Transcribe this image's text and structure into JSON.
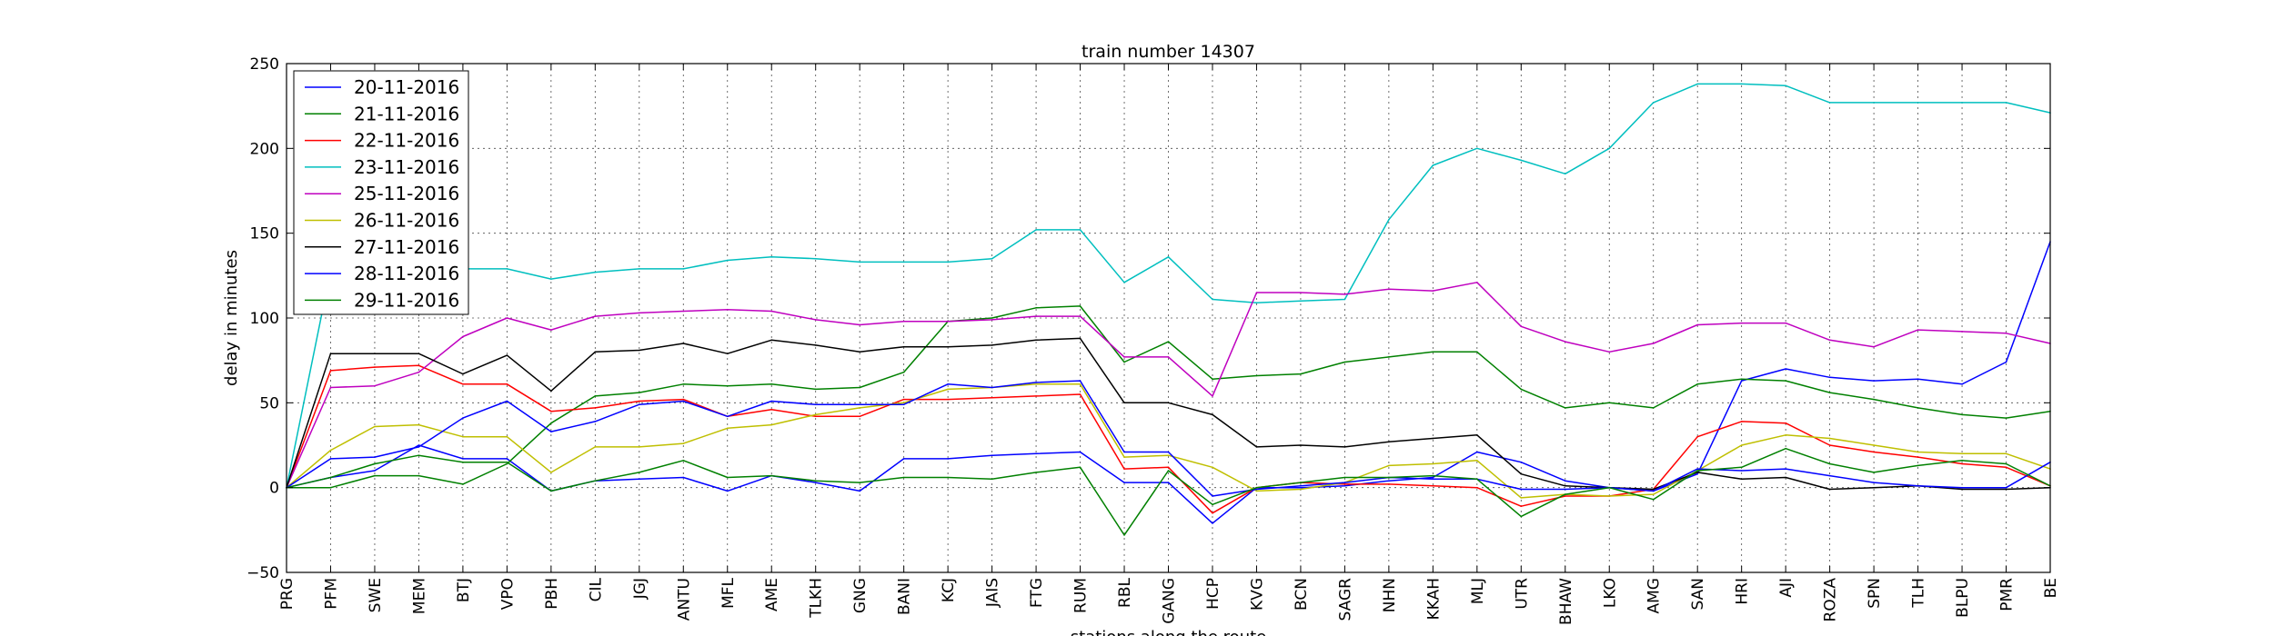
{
  "chart_data": {
    "type": "line",
    "title": "train number 14307",
    "xlabel": "stations along the route",
    "ylabel": "delay in minutes",
    "ylim": [
      -50,
      250
    ],
    "yticks": [
      "−50",
      "0",
      "50",
      "100",
      "150",
      "200",
      "250"
    ],
    "grid": true,
    "legend_position": "top-left",
    "categories": [
      "PRG",
      "PFM",
      "SWE",
      "MEM",
      "BTJ",
      "VPO",
      "PBH",
      "CIL",
      "JGJ",
      "ANTU",
      "MFL",
      "AME",
      "TLKH",
      "GNG",
      "BANI",
      "KCJ",
      "JAIS",
      "FTG",
      "RUM",
      "RBL",
      "GANG",
      "HCP",
      "KVG",
      "BCN",
      "SAGR",
      "NHN",
      "KKAH",
      "MLJ",
      "UTR",
      "BHAW",
      "LKO",
      "AMG",
      "SAN",
      "HRI",
      "AJI",
      "ROZA",
      "SPN",
      "TLH",
      "BLPU",
      "PMR",
      "BE"
    ],
    "series": [
      {
        "name": "20-11-2016",
        "color": "#0000ff",
        "values": [
          0,
          6,
          10,
          25,
          17,
          17,
          -2,
          4,
          5,
          6,
          -2,
          7,
          3,
          -2,
          17,
          17,
          19,
          20,
          21,
          3,
          3,
          -21,
          0,
          0,
          1,
          4,
          6,
          21,
          15,
          4,
          0,
          -2,
          8,
          63,
          70,
          65,
          63,
          64,
          61,
          74,
          145
        ]
      },
      {
        "name": "21-11-2016",
        "color": "#008000",
        "values": [
          0,
          0,
          7,
          7,
          2,
          14,
          38,
          54,
          56,
          61,
          60,
          61,
          58,
          59,
          68,
          98,
          100,
          106,
          107,
          74,
          86,
          64,
          66,
          67,
          74,
          77,
          80,
          80,
          58,
          47,
          50,
          47,
          61,
          64,
          63,
          56,
          52,
          47,
          43,
          41,
          45
        ]
      },
      {
        "name": "22-11-2016",
        "color": "#ff0000",
        "values": [
          0,
          69,
          71,
          72,
          61,
          61,
          45,
          47,
          51,
          52,
          42,
          46,
          42,
          42,
          52,
          52,
          53,
          54,
          55,
          11,
          12,
          -15,
          0,
          3,
          2,
          2,
          1,
          0,
          -11,
          -5,
          -5,
          -1,
          30,
          39,
          38,
          25,
          21,
          18,
          14,
          12,
          1
        ]
      },
      {
        "name": "23-11-2016",
        "color": "#00bfbf",
        "values": [
          0,
          128,
          129,
          129,
          129,
          129,
          123,
          127,
          129,
          129,
          134,
          136,
          135,
          133,
          133,
          133,
          135,
          152,
          152,
          121,
          136,
          111,
          109,
          110,
          111,
          158,
          190,
          200,
          193,
          185,
          200,
          227,
          238,
          238,
          237,
          227,
          227,
          227,
          227,
          227,
          221
        ]
      },
      {
        "name": "25-11-2016",
        "color": "#bf00bf",
        "values": [
          0,
          59,
          60,
          68,
          89,
          100,
          93,
          101,
          103,
          104,
          105,
          104,
          99,
          96,
          98,
          98,
          99,
          101,
          101,
          77,
          77,
          54,
          115,
          115,
          114,
          117,
          116,
          121,
          95,
          86,
          80,
          85,
          96,
          97,
          97,
          87,
          83,
          93,
          92,
          91,
          85
        ]
      },
      {
        "name": "26-11-2016",
        "color": "#bfbf00",
        "values": [
          0,
          22,
          36,
          37,
          30,
          30,
          9,
          24,
          24,
          26,
          35,
          37,
          43,
          47,
          50,
          58,
          59,
          61,
          61,
          18,
          19,
          12,
          -2,
          -1,
          3,
          13,
          14,
          16,
          -6,
          -4,
          -5,
          -4,
          10,
          25,
          31,
          29,
          25,
          21,
          20,
          20,
          11
        ]
      },
      {
        "name": "27-11-2016",
        "color": "#000000",
        "values": [
          0,
          79,
          79,
          79,
          67,
          78,
          57,
          80,
          81,
          85,
          79,
          87,
          84,
          80,
          83,
          83,
          84,
          87,
          88,
          50,
          50,
          43,
          24,
          25,
          24,
          27,
          29,
          31,
          8,
          1,
          0,
          -1,
          9,
          5,
          6,
          -1,
          0,
          1,
          -1,
          -1,
          0
        ]
      },
      {
        "name": "28-11-2016",
        "color": "#0000ff",
        "values": [
          0,
          17,
          18,
          24,
          41,
          51,
          33,
          39,
          49,
          51,
          42,
          51,
          49,
          49,
          49,
          61,
          59,
          62,
          63,
          21,
          21,
          -5,
          -1,
          1,
          3,
          6,
          5,
          5,
          -1,
          -1,
          0,
          -2,
          11,
          10,
          11,
          7,
          3,
          1,
          0,
          0,
          15
        ]
      },
      {
        "name": "29-11-2016",
        "color": "#008000",
        "values": [
          0,
          6,
          14,
          19,
          15,
          15,
          -2,
          4,
          9,
          16,
          6,
          7,
          4,
          3,
          6,
          6,
          5,
          9,
          12,
          -28,
          10,
          -10,
          0,
          3,
          6,
          6,
          7,
          5,
          -17,
          -4,
          0,
          -7,
          10,
          12,
          23,
          14,
          9,
          13,
          16,
          14,
          1
        ]
      }
    ]
  }
}
